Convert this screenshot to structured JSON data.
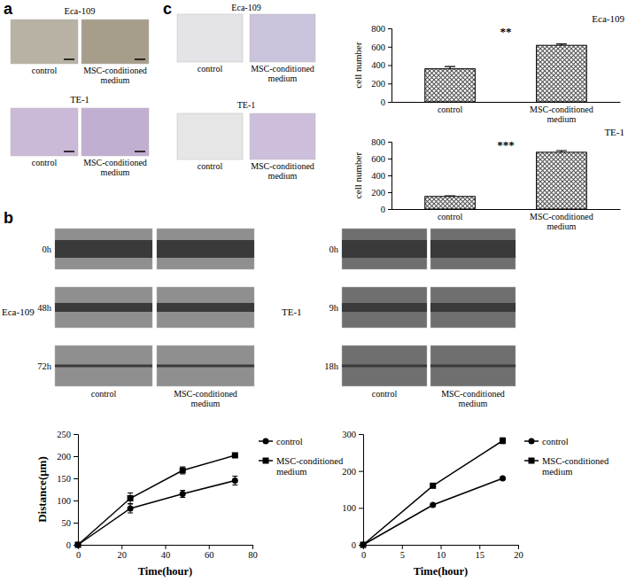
{
  "figure": {
    "panel_a": {
      "letter": "a",
      "groups": [
        {
          "title": "Eca-109",
          "conditions": [
            "control",
            "MSC-conditioned medium"
          ]
        },
        {
          "title": "TE-1",
          "conditions": [
            "control",
            "MSC-conditioned medium"
          ]
        }
      ]
    },
    "panel_b": {
      "letter": "b",
      "groups": [
        {
          "title": "Eca-109",
          "times": [
            "0h",
            "48h",
            "72h"
          ],
          "conditions": [
            "control",
            "MSC-conditioned medium"
          ]
        },
        {
          "title": "TE-1",
          "times": [
            "0h",
            "9h",
            "18h"
          ],
          "conditions": [
            "control",
            "MSC-conditioned medium"
          ]
        }
      ]
    },
    "panel_c": {
      "letter": "c",
      "groups": [
        {
          "title": "Eca-109",
          "conditions": [
            "control",
            "MSC-conditioned medium"
          ]
        },
        {
          "title": "TE-1",
          "conditions": [
            "control",
            "MSC-conditioned medium"
          ]
        }
      ]
    }
  },
  "chart_data": [
    {
      "type": "bar",
      "title": "Eca-109",
      "y_label": "cell number",
      "categories": [
        "control",
        "MSC-conditioned medium"
      ],
      "values": [
        360,
        615
      ],
      "errors": [
        25,
        15
      ],
      "color": "#555555",
      "ylim": [
        0,
        800
      ],
      "yticks": [
        0,
        200,
        400,
        600,
        800
      ],
      "annotations": [
        "**"
      ]
    },
    {
      "type": "bar",
      "title": "TE-1",
      "y_label": "cell number",
      "categories": [
        "control",
        "MSC-conditioned medium"
      ],
      "values": [
        150,
        675
      ],
      "errors": [
        8,
        20
      ],
      "color": "#555555",
      "ylim": [
        0,
        800
      ],
      "yticks": [
        0,
        200,
        400,
        600,
        800
      ],
      "annotations": [
        "***"
      ]
    },
    {
      "type": "line",
      "x_label": "Time(hour)",
      "y_label": "Distance(μm)",
      "x": [
        0,
        24,
        48,
        72
      ],
      "series": [
        {
          "name": "control",
          "color": "#000000",
          "marker": "circle",
          "values": [
            0,
            82,
            115,
            145
          ],
          "errors": [
            0,
            10,
            8,
            10
          ]
        },
        {
          "name": "MSC-conditioned medium",
          "color": "#000000",
          "marker": "square",
          "values": [
            0,
            105,
            168,
            202
          ],
          "errors": [
            0,
            12,
            8,
            4
          ]
        }
      ],
      "xlim": [
        0,
        80
      ],
      "xticks": [
        0,
        20,
        40,
        60,
        80
      ],
      "ylim": [
        0,
        250
      ],
      "yticks": [
        0,
        50,
        100,
        150,
        200,
        250
      ],
      "legend": "right"
    },
    {
      "type": "line",
      "x_label": "Time(hour)",
      "x": [
        0,
        9,
        18
      ],
      "series": [
        {
          "name": "control",
          "color": "#000000",
          "marker": "circle",
          "values": [
            0,
            108,
            180
          ],
          "errors": [
            0,
            3,
            3
          ]
        },
        {
          "name": "MSC-conditioned medium",
          "color": "#000000",
          "marker": "square",
          "values": [
            0,
            160,
            282
          ],
          "errors": [
            0,
            4,
            8
          ]
        }
      ],
      "xlim": [
        0,
        20
      ],
      "xticks": [
        0,
        5,
        10,
        15,
        20
      ],
      "ylim": [
        0,
        300
      ],
      "yticks": [
        0,
        100,
        200,
        300
      ],
      "legend": "right"
    }
  ]
}
